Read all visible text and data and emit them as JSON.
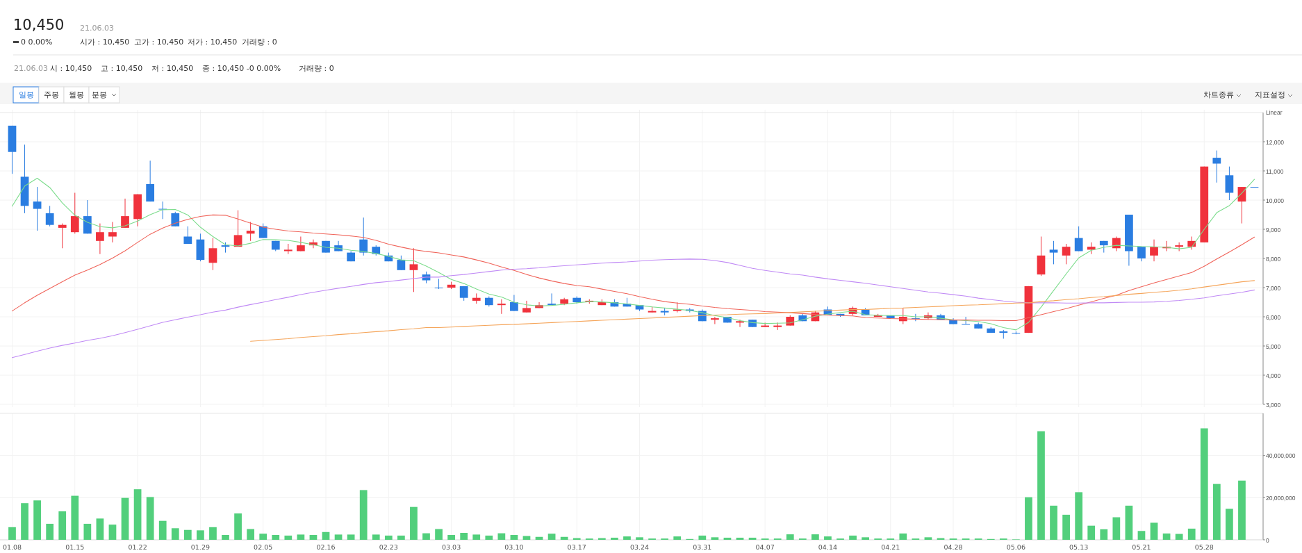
{
  "chart_data": [
    {
      "type": "other",
      "annotations": [
        "10,450",
        "21.06.03",
        "0 0.00%",
        "시가 : 10,450",
        "고가 : 10,450",
        "저가 : 10,450",
        "거래량 : 0",
        "21.06.03",
        "시 : 10,450",
        "고 : 10,450",
        "저 : 10,450",
        "종 : 10,450 -0 0.00%",
        "거래량 : 0",
        "일봉",
        "주봉",
        "월봉",
        "분봉",
        "차트종류",
        "지표설정"
      ]
    },
    {
      "type": "candlestick",
      "tick_labels": "y",
      "grid": true,
      "annotations": [
        "Linear"
      ],
      "categories": [
        "01.08",
        null,
        null,
        null,
        null,
        "01.15",
        null,
        null,
        null,
        null,
        "01.22",
        null,
        null,
        null,
        null,
        "01.29",
        null,
        null,
        null,
        null,
        "02.05",
        null,
        null,
        null,
        null,
        "02.16",
        null,
        null,
        null,
        null,
        "02.23",
        null,
        null,
        null,
        null,
        "03.03",
        null,
        null,
        null,
        null,
        "03.10",
        null,
        null,
        null,
        null,
        "03.17",
        null,
        null,
        null,
        null,
        "03.24",
        null,
        null,
        null,
        null,
        "03.31",
        null,
        null,
        null,
        null,
        "04.07",
        null,
        null,
        null,
        null,
        "04.14",
        null,
        null,
        null,
        null,
        "04.21",
        null,
        null,
        null,
        null,
        "04.28",
        null,
        null,
        null,
        null,
        "05.06",
        null,
        null,
        null,
        null,
        "05.13",
        null,
        null,
        null,
        null,
        "05.21",
        null,
        null,
        null,
        null,
        "05.28",
        null,
        null,
        null,
        null
      ],
      "ylim": [
        3000,
        13000
      ],
      "yticks": [
        {
          "value": 3000,
          "label": "3,000"
        },
        {
          "value": 4000,
          "label": "4,000"
        },
        {
          "value": 5000,
          "label": "5,000"
        },
        {
          "value": 6000,
          "label": "6,000"
        },
        {
          "value": 7000,
          "label": "7,000"
        },
        {
          "value": 8000,
          "label": "8,000"
        },
        {
          "value": 9000,
          "label": "9,000"
        },
        {
          "value": 10000,
          "label": "10,000"
        },
        {
          "value": 11000,
          "label": "11,000"
        },
        {
          "value": 12000,
          "label": "12,000"
        }
      ],
      "ohlc": [
        [
          12550,
          12550,
          10900,
          11650
        ],
        [
          10800,
          11900,
          9550,
          9800
        ],
        [
          9950,
          10450,
          8950,
          9700
        ],
        [
          9550,
          9800,
          9100,
          9150
        ],
        [
          9050,
          9200,
          8350,
          9150
        ],
        [
          8900,
          10250,
          8850,
          9450
        ],
        [
          9450,
          10000,
          8850,
          8850
        ],
        [
          8600,
          9200,
          8150,
          8900
        ],
        [
          8750,
          9250,
          8550,
          8900
        ],
        [
          9050,
          10050,
          9050,
          9450
        ],
        [
          9350,
          10200,
          9100,
          10200
        ],
        [
          10550,
          11350,
          9950,
          9950
        ],
        [
          9700,
          9950,
          9350,
          9700
        ],
        [
          9550,
          9600,
          9100,
          9100
        ],
        [
          8750,
          9100,
          8500,
          8500
        ],
        [
          8650,
          8850,
          7900,
          7950
        ],
        [
          7850,
          8700,
          7600,
          8350
        ],
        [
          8450,
          8550,
          8200,
          8400
        ],
        [
          8400,
          9650,
          8400,
          8800
        ],
        [
          8850,
          9250,
          8600,
          8950
        ],
        [
          9100,
          9200,
          8700,
          8700
        ],
        [
          8600,
          8600,
          8250,
          8300
        ],
        [
          8250,
          8500,
          8150,
          8300
        ],
        [
          8250,
          8750,
          8250,
          8450
        ],
        [
          8450,
          8650,
          8350,
          8550
        ],
        [
          8600,
          8600,
          8200,
          8200
        ],
        [
          8450,
          8600,
          8250,
          8250
        ],
        [
          8200,
          8250,
          7900,
          7900
        ],
        [
          8650,
          9400,
          8100,
          8200
        ],
        [
          8400,
          8450,
          8100,
          8150
        ],
        [
          8100,
          8200,
          7900,
          7900
        ],
        [
          7950,
          8100,
          7600,
          7600
        ],
        [
          7600,
          8350,
          6850,
          7800
        ],
        [
          7450,
          7550,
          7150,
          7250
        ],
        [
          7000,
          7300,
          6950,
          7000
        ],
        [
          7000,
          7200,
          6950,
          7100
        ],
        [
          7050,
          7050,
          6550,
          6650
        ],
        [
          6550,
          6800,
          6450,
          6650
        ],
        [
          6650,
          6700,
          6350,
          6400
        ],
        [
          6400,
          6600,
          6100,
          6450
        ],
        [
          6500,
          6750,
          6200,
          6200
        ],
        [
          6150,
          6550,
          6150,
          6300
        ],
        [
          6300,
          6500,
          6300,
          6400
        ],
        [
          6450,
          6800,
          6400,
          6400
        ],
        [
          6450,
          6650,
          6400,
          6600
        ],
        [
          6650,
          6700,
          6450,
          6500
        ],
        [
          6500,
          6600,
          6450,
          6550
        ],
        [
          6400,
          6600,
          6400,
          6500
        ],
        [
          6500,
          6600,
          6350,
          6350
        ],
        [
          6450,
          6650,
          6350,
          6350
        ],
        [
          6400,
          6400,
          6200,
          6250
        ],
        [
          6150,
          6350,
          6150,
          6200
        ],
        [
          6200,
          6300,
          6050,
          6150
        ],
        [
          6200,
          6500,
          6150,
          6250
        ],
        [
          6250,
          6300,
          6150,
          6200
        ],
        [
          6200,
          6250,
          5850,
          5850
        ],
        [
          5900,
          6000,
          5750,
          5950
        ],
        [
          6000,
          6000,
          5800,
          5800
        ],
        [
          5800,
          5900,
          5650,
          5850
        ],
        [
          5900,
          5900,
          5650,
          5650
        ],
        [
          5650,
          5800,
          5650,
          5700
        ],
        [
          5650,
          5800,
          5550,
          5700
        ],
        [
          5700,
          6050,
          5700,
          6000
        ],
        [
          6050,
          6100,
          5850,
          5850
        ],
        [
          5850,
          6200,
          5850,
          6150
        ],
        [
          6250,
          6350,
          6050,
          6050
        ],
        [
          6100,
          6100,
          6000,
          6050
        ],
        [
          6100,
          6350,
          6050,
          6300
        ],
        [
          6250,
          6300,
          6050,
          6050
        ],
        [
          6000,
          6100,
          6000,
          6050
        ],
        [
          6050,
          6050,
          5950,
          5950
        ],
        [
          5850,
          6300,
          5750,
          6000
        ],
        [
          5950,
          6100,
          5850,
          5950
        ],
        [
          5950,
          6150,
          5900,
          6050
        ],
        [
          6050,
          6100,
          5900,
          5900
        ],
        [
          5900,
          5950,
          5750,
          5750
        ],
        [
          5750,
          6000,
          5750,
          5750
        ],
        [
          5750,
          5800,
          5600,
          5600
        ],
        [
          5600,
          5650,
          5450,
          5450
        ],
        [
          5500,
          5550,
          5250,
          5450
        ],
        [
          5450,
          5500,
          5400,
          5450
        ],
        [
          5450,
          7050,
          5450,
          7050
        ],
        [
          7450,
          8750,
          7400,
          8100
        ],
        [
          8300,
          8600,
          7800,
          8200
        ],
        [
          8100,
          8500,
          7800,
          8400
        ],
        [
          8700,
          9100,
          8250,
          8250
        ],
        [
          8300,
          8550,
          8150,
          8400
        ],
        [
          8600,
          8600,
          8200,
          8450
        ],
        [
          8350,
          8750,
          8250,
          8700
        ],
        [
          9500,
          9500,
          7750,
          8250
        ],
        [
          8400,
          8400,
          7900,
          8000
        ],
        [
          8100,
          8650,
          7900,
          8400
        ],
        [
          8350,
          8600,
          8250,
          8400
        ],
        [
          8400,
          8550,
          8250,
          8450
        ],
        [
          8400,
          8750,
          8300,
          8600
        ],
        [
          8550,
          11150,
          8550,
          11150
        ],
        [
          11450,
          11700,
          10600,
          11250
        ],
        [
          10850,
          11150,
          10000,
          10250
        ],
        [
          9950,
          10450,
          9200,
          10450
        ],
        [
          10450,
          10450,
          10450,
          10450
        ]
      ],
      "series": [
        {
          "type": "line",
          "color": "#7cdc8c",
          "values": [
            9790,
            10480,
            10750,
            10430,
            9900,
            9480,
            9240,
            9090,
            9050,
            9120,
            9280,
            9500,
            9670,
            9680,
            9490,
            9070,
            8750,
            8470,
            8430,
            8520,
            8650,
            8640,
            8620,
            8550,
            8470,
            8380,
            8350,
            8280,
            8240,
            8170,
            8070,
            7950,
            7920,
            7740,
            7520,
            7280,
            7140,
            6950,
            6780,
            6680,
            6500,
            6410,
            6370,
            6390,
            6430,
            6480,
            6520,
            6510,
            6480,
            6440,
            6390,
            6340,
            6300,
            6260,
            6220,
            6140,
            6040,
            5970,
            5870,
            5800,
            5770,
            5780,
            5790,
            5900,
            6020,
            6090,
            6150,
            6190,
            6070,
            6050,
            6040,
            6040,
            6000,
            6000,
            5950,
            5900,
            5870,
            5840,
            5760,
            5630,
            5550,
            5810,
            6330,
            6900,
            7470,
            8020,
            8280,
            8380,
            8450,
            8430,
            8410,
            8400,
            8380,
            8330,
            8380,
            9000,
            9570,
            9810,
            10240,
            10710
          ]
        },
        {
          "type": "line",
          "color": "#f0645a",
          "values": [
            6200,
            6480,
            6740,
            6970,
            7200,
            7430,
            7600,
            7790,
            8010,
            8260,
            8550,
            8830,
            9040,
            9210,
            9340,
            9440,
            9490,
            9480,
            9350,
            9210,
            9070,
            9000,
            8940,
            8910,
            8870,
            8840,
            8810,
            8770,
            8720,
            8620,
            8490,
            8390,
            8300,
            8240,
            8190,
            8120,
            8050,
            7950,
            7840,
            7710,
            7590,
            7450,
            7330,
            7230,
            7140,
            7070,
            7030,
            6950,
            6870,
            6790,
            6690,
            6600,
            6520,
            6470,
            6430,
            6370,
            6320,
            6280,
            6250,
            6220,
            6180,
            6160,
            6140,
            6110,
            6080,
            6060,
            6040,
            6030,
            5970,
            5960,
            5940,
            5930,
            5920,
            5910,
            5900,
            5890,
            5890,
            5880,
            5880,
            5870,
            5870,
            5970,
            6070,
            6180,
            6280,
            6400,
            6510,
            6630,
            6740,
            6900,
            7030,
            7160,
            7280,
            7400,
            7520,
            7730,
            7980,
            8220,
            8470,
            8730
          ]
        },
        {
          "type": "line",
          "color": "#c08af5",
          "values": [
            4600,
            4710,
            4820,
            4930,
            5020,
            5100,
            5190,
            5260,
            5350,
            5460,
            5570,
            5690,
            5810,
            5900,
            5990,
            6070,
            6160,
            6230,
            6330,
            6420,
            6500,
            6590,
            6670,
            6760,
            6840,
            6910,
            6980,
            7040,
            7110,
            7170,
            7210,
            7260,
            7310,
            7360,
            7360,
            7410,
            7450,
            7500,
            7550,
            7600,
            7630,
            7650,
            7680,
            7720,
            7750,
            7780,
            7810,
            7840,
            7860,
            7880,
            7910,
            7940,
            7960,
            7970,
            7980,
            7970,
            7930,
            7860,
            7760,
            7660,
            7590,
            7530,
            7470,
            7430,
            7360,
            7300,
            7250,
            7200,
            7150,
            7090,
            7030,
            6970,
            6910,
            6850,
            6810,
            6760,
            6710,
            6640,
            6590,
            6540,
            6500,
            6480,
            6480,
            6480,
            6470,
            6470,
            6480,
            6480,
            6490,
            6500,
            6500,
            6510,
            6530,
            6560,
            6600,
            6650,
            6720,
            6780,
            6840,
            6920
          ]
        },
        {
          "type": "line",
          "color": "#f5a55a",
          "values": [
            null,
            null,
            null,
            null,
            null,
            null,
            null,
            null,
            null,
            null,
            null,
            null,
            null,
            null,
            null,
            null,
            null,
            null,
            null,
            5160,
            5190,
            5220,
            5250,
            5290,
            5320,
            5350,
            5390,
            5420,
            5460,
            5490,
            5520,
            5560,
            5590,
            5630,
            5630,
            5650,
            5670,
            5690,
            5710,
            5730,
            5740,
            5760,
            5780,
            5800,
            5820,
            5840,
            5860,
            5880,
            5900,
            5920,
            5940,
            5960,
            5980,
            6000,
            6020,
            6040,
            6060,
            6070,
            6090,
            6100,
            6110,
            6130,
            6150,
            6170,
            6190,
            6210,
            6230,
            6250,
            6250,
            6270,
            6290,
            6300,
            6320,
            6340,
            6360,
            6380,
            6400,
            6410,
            6430,
            6450,
            6470,
            6480,
            6520,
            6550,
            6590,
            6620,
            6660,
            6690,
            6730,
            6770,
            6800,
            6840,
            6870,
            6910,
            6960,
            7020,
            7080,
            7140,
            7200,
            7240
          ]
        }
      ]
    },
    {
      "type": "bar",
      "grid": true,
      "color": "#52cf7c",
      "categories": [
        "01.08",
        null,
        null,
        null,
        null,
        "01.15",
        null,
        null,
        null,
        null,
        "01.22",
        null,
        null,
        null,
        null,
        "01.29",
        null,
        null,
        null,
        null,
        "02.05",
        null,
        null,
        null,
        null,
        "02.16",
        null,
        null,
        null,
        null,
        "02.23",
        null,
        null,
        null,
        null,
        "03.03",
        null,
        null,
        null,
        null,
        "03.10",
        null,
        null,
        null,
        null,
        "03.17",
        null,
        null,
        null,
        null,
        "03.24",
        null,
        null,
        null,
        null,
        "03.31",
        null,
        null,
        null,
        null,
        "04.07",
        null,
        null,
        null,
        null,
        "04.14",
        null,
        null,
        null,
        null,
        "04.21",
        null,
        null,
        null,
        null,
        "04.28",
        null,
        null,
        null,
        null,
        "05.06",
        null,
        null,
        null,
        null,
        "05.13",
        null,
        null,
        null,
        null,
        "05.21",
        null,
        null,
        null,
        null,
        "05.28",
        null,
        null,
        null,
        null
      ],
      "ylim": [
        0,
        60000000
      ],
      "yticks": [
        0,
        {
          "value": 20000000,
          "label": "20,000,000"
        },
        {
          "value": 40000000,
          "label": "40,000,000"
        }
      ],
      "values": [
        6000000,
        17400000,
        18700000,
        7600000,
        13500000,
        20900000,
        7600000,
        10100000,
        7200000,
        19900000,
        24000000,
        20300000,
        9000000,
        5500000,
        4700000,
        4500000,
        6000000,
        2300000,
        12500000,
        5100000,
        2900000,
        2300000,
        2000000,
        2500000,
        2300000,
        3700000,
        2500000,
        2500000,
        23600000,
        2500000,
        2000000,
        2000000,
        15600000,
        3100000,
        5100000,
        2300000,
        3300000,
        2500000,
        2000000,
        3100000,
        2300000,
        1800000,
        1400000,
        2900000,
        1400000,
        800000,
        600000,
        800000,
        1000000,
        1600000,
        1200000,
        600000,
        600000,
        1600000,
        400000,
        2000000,
        1200000,
        1000000,
        1000000,
        1000000,
        600000,
        600000,
        2600000,
        600000,
        2600000,
        1600000,
        600000,
        2000000,
        1200000,
        600000,
        600000,
        3000000,
        600000,
        1200000,
        800000,
        600000,
        600000,
        600000,
        400000,
        600000,
        200000,
        20200000,
        51500000,
        16200000,
        11900000,
        22600000,
        6700000,
        5000000,
        10700000,
        16200000,
        4200000,
        8100000,
        3000000,
        2800000,
        5300000,
        52900000,
        26500000,
        14700000,
        28100000,
        0
      ]
    }
  ]
}
